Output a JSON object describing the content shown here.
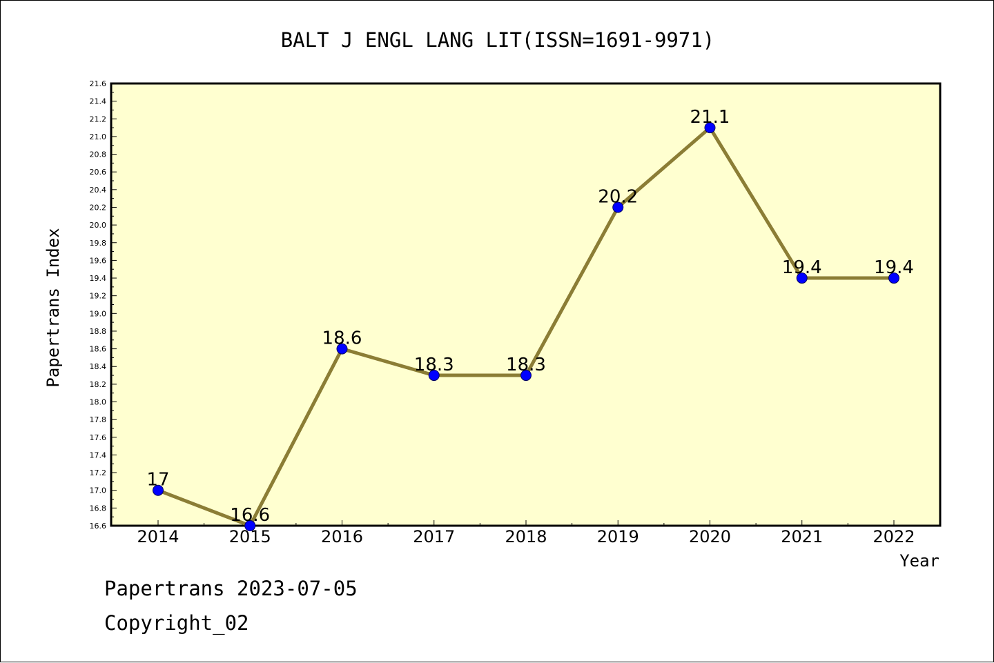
{
  "chart_data": {
    "type": "line",
    "title": "BALT J ENGL LANG LIT(ISSN=1691-9971)",
    "xlabel": "Year",
    "ylabel": "Papertrans Index",
    "categories": [
      "2014",
      "2015",
      "2016",
      "2017",
      "2018",
      "2019",
      "2020",
      "2021",
      "2022"
    ],
    "series": [
      {
        "values": [
          17,
          16.6,
          18.6,
          18.3,
          18.3,
          20.2,
          21.1,
          19.4,
          19.4
        ],
        "labels": [
          "17",
          "16.6",
          "18.6",
          "18.3",
          "18.3",
          "20.2",
          "21.1",
          "19.4",
          "19.4"
        ]
      }
    ],
    "ylim": [
      16.6,
      21.6
    ],
    "ytick_labels": [
      "16.6",
      "16.8",
      "17.0",
      "17.2",
      "17.4",
      "17.6",
      "17.8",
      "18.0",
      "18.2",
      "18.4",
      "18.6",
      "18.8",
      "19.0",
      "19.2",
      "19.4",
      "19.6",
      "19.8",
      "20.0",
      "20.2",
      "20.4",
      "20.6",
      "20.8",
      "21.0",
      "21.2",
      "21.4",
      "21.6"
    ],
    "grid": false,
    "legend": "none",
    "colors": {
      "plot_background": "#ffffd0",
      "line": "#8b7d35",
      "marker_fill": "#0000ff",
      "marker_edge": "#000060",
      "axes": "#000000"
    }
  },
  "footer": {
    "line1": "Papertrans 2023-07-05",
    "line2": "Copyright_02"
  }
}
